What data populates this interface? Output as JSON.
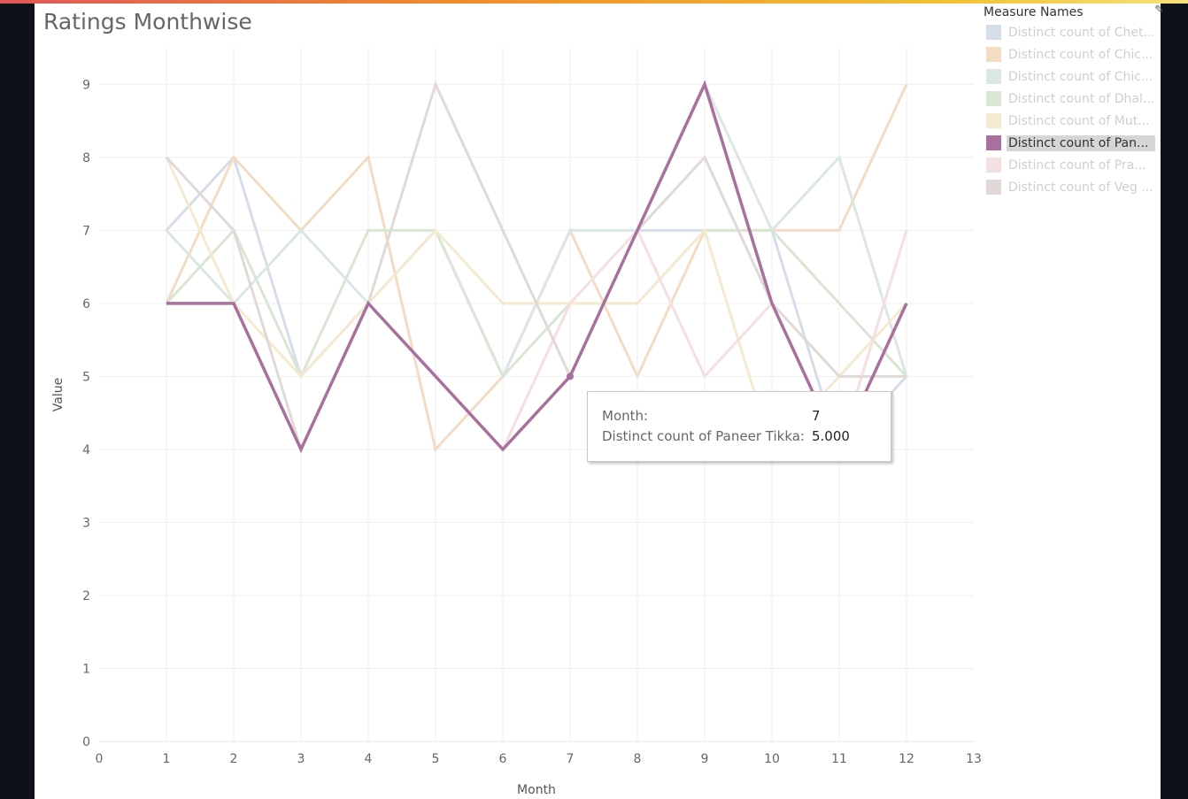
{
  "chart_data": {
    "type": "line",
    "title": "Ratings Monthwise",
    "xlabel": "Month",
    "ylabel": "Value",
    "xlim": [
      0,
      13
    ],
    "ylim": [
      0,
      9.5
    ],
    "x_ticks": [
      "0",
      "1",
      "2",
      "3",
      "4",
      "5",
      "6",
      "7",
      "8",
      "9",
      "10",
      "11",
      "12",
      "13"
    ],
    "y_ticks": [
      "0",
      "1",
      "2",
      "3",
      "4",
      "5",
      "6",
      "7",
      "8",
      "9"
    ],
    "x": [
      1,
      2,
      3,
      4,
      5,
      6,
      7,
      8,
      9,
      10,
      11,
      12
    ],
    "grid": true,
    "legend_title": "Measure Names",
    "series": [
      {
        "name": "Distinct count of Chet...",
        "color": "#d5dde8",
        "values": [
          7,
          8,
          5,
          6,
          7,
          5,
          7,
          7,
          7,
          7,
          4,
          5
        ]
      },
      {
        "name": "Distinct count of Chic...",
        "color": "#f3dcc4",
        "values": [
          6,
          8,
          7,
          8,
          4,
          5,
          7,
          5,
          7,
          7,
          7,
          9
        ]
      },
      {
        "name": "Distinct count of Chic...",
        "color": "#dae7e4",
        "values": [
          7,
          6,
          7,
          6,
          7,
          5,
          7,
          7,
          9,
          7,
          8,
          5
        ]
      },
      {
        "name": "Distinct count of Dhal...",
        "color": "#d9e6d4",
        "values": [
          6,
          7,
          5,
          7,
          7,
          5,
          6,
          6,
          7,
          7,
          6,
          5
        ]
      },
      {
        "name": "Distinct count of Mut...",
        "color": "#f3ead0",
        "values": [
          8,
          6,
          5,
          6,
          7,
          6,
          6,
          6,
          7,
          4,
          5,
          6
        ]
      },
      {
        "name": "Distinct count of Pan...",
        "color": "#a8719d",
        "values": [
          6,
          6,
          4,
          6,
          5,
          4,
          5,
          7,
          9,
          6,
          4,
          6
        ]
      },
      {
        "name": "Distinct count of Pra...",
        "color": "#f4dfe1",
        "values": [
          6,
          6,
          4,
          6,
          5,
          4,
          6,
          7,
          5,
          6,
          4,
          7
        ]
      },
      {
        "name": "Distinct count of Veg ...",
        "color": "#e1d9d6",
        "values": [
          8,
          7,
          4,
          6,
          9,
          7,
          5,
          7,
          8,
          6,
          5,
          5
        ]
      }
    ],
    "highlighted_series": 5,
    "tooltip": {
      "month_label": "Month:",
      "month_value": "7",
      "measure_label": "Distinct count of Paneer Tikka:",
      "measure_value": "5.000",
      "x": 7,
      "y": 5
    }
  }
}
